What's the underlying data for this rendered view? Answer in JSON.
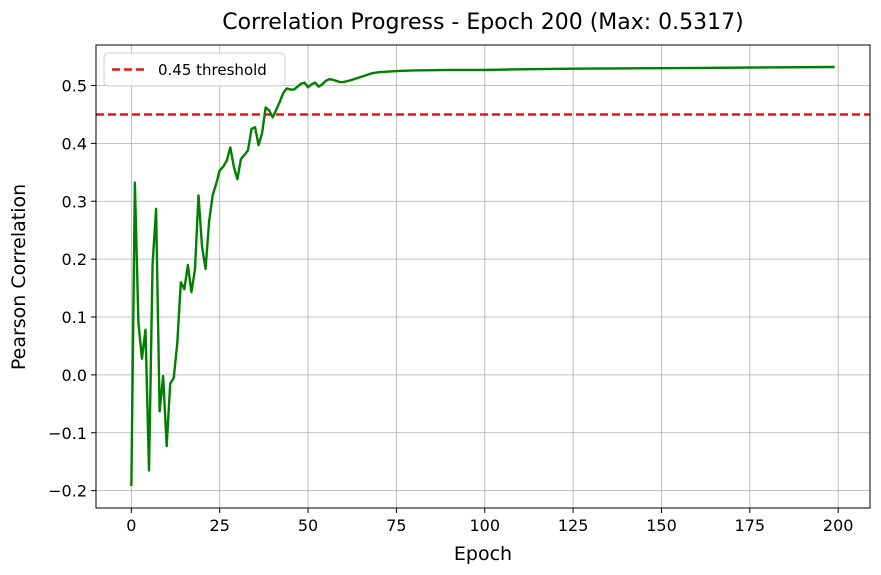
{
  "chart_data": {
    "type": "line",
    "title": "Correlation Progress - Epoch 200 (Max: 0.5317)",
    "xlabel": "Epoch",
    "ylabel": "Pearson Correlation",
    "xlim": [
      -10,
      209
    ],
    "ylim": [
      -0.23,
      0.57
    ],
    "xticks": [
      0,
      25,
      50,
      75,
      100,
      125,
      150,
      175,
      200
    ],
    "xtick_labels": [
      "0",
      "25",
      "50",
      "75",
      "100",
      "125",
      "150",
      "175",
      "200"
    ],
    "yticks": [
      -0.2,
      -0.1,
      0.0,
      0.1,
      0.2,
      0.3,
      0.4,
      0.5
    ],
    "ytick_labels": [
      "−0.2",
      "−0.1",
      "0.0",
      "0.1",
      "0.2",
      "0.3",
      "0.4",
      "0.5"
    ],
    "grid": true,
    "legend_position": "top-left",
    "legend": [
      "0.45 threshold"
    ],
    "threshold": {
      "name": "0.45 threshold",
      "value": 0.45,
      "color": "#ee1111",
      "style": "dashed"
    },
    "series": [
      {
        "color": "#007f00",
        "x": [
          0,
          1,
          2,
          3,
          4,
          5,
          6,
          7,
          8,
          9,
          10,
          11,
          12,
          13,
          14,
          15,
          16,
          17,
          18,
          19,
          20,
          21,
          22,
          23,
          24,
          25,
          26,
          27,
          28,
          29,
          30,
          31,
          32,
          33,
          34,
          35,
          36,
          37,
          38,
          39,
          40,
          41,
          42,
          43,
          44,
          45,
          46,
          47,
          48,
          49,
          50,
          51,
          52,
          53,
          54,
          55,
          56,
          57,
          58,
          59,
          60,
          62,
          65,
          68,
          70,
          75,
          80,
          90,
          100,
          110,
          125,
          150,
          175,
          199
        ],
        "y": [
          -0.192,
          0.332,
          0.09,
          0.028,
          0.078,
          -0.165,
          0.19,
          0.287,
          -0.063,
          -0.002,
          -0.123,
          -0.015,
          -0.005,
          0.055,
          0.16,
          0.148,
          0.19,
          0.143,
          0.182,
          0.31,
          0.222,
          0.183,
          0.265,
          0.31,
          0.33,
          0.353,
          0.36,
          0.37,
          0.393,
          0.36,
          0.338,
          0.373,
          0.38,
          0.388,
          0.425,
          0.428,
          0.397,
          0.418,
          0.462,
          0.457,
          0.445,
          0.458,
          0.472,
          0.487,
          0.495,
          0.493,
          0.493,
          0.498,
          0.503,
          0.505,
          0.497,
          0.502,
          0.505,
          0.498,
          0.502,
          0.508,
          0.511,
          0.51,
          0.508,
          0.506,
          0.506,
          0.509,
          0.515,
          0.521,
          0.523,
          0.525,
          0.526,
          0.527,
          0.527,
          0.528,
          0.529,
          0.53,
          0.531,
          0.532
        ]
      }
    ]
  }
}
